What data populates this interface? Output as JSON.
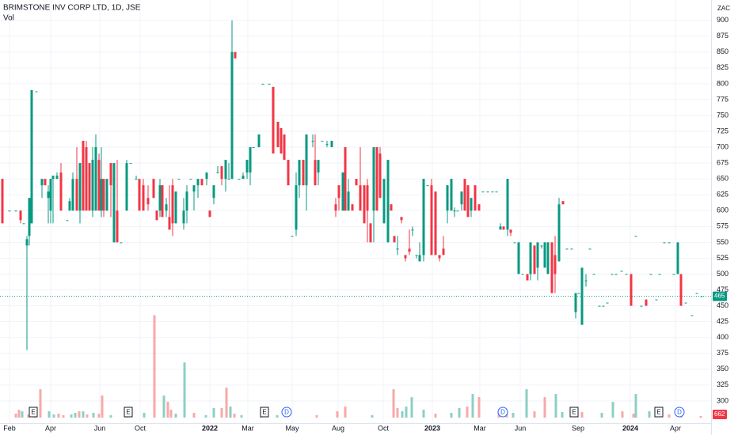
{
  "chart_data": {
    "type": "candlestick",
    "title": "BRIMSTONE INV CORP LTD, 1D, JSE",
    "volume_title": "Vol",
    "currency": "ZAC",
    "up_color": "#089981",
    "down_color": "#f23645",
    "ylim": [
      265,
      932
    ],
    "yticks": [
      300,
      325,
      350,
      375,
      400,
      425,
      450,
      475,
      500,
      525,
      550,
      575,
      600,
      625,
      650,
      675,
      700,
      725,
      750,
      775,
      800,
      825,
      850,
      875,
      900
    ],
    "xlim": [
      0,
      898
    ],
    "xticks": [
      {
        "value": 12,
        "label": "Feb"
      },
      {
        "value": 64,
        "label": "Apr"
      },
      {
        "value": 126,
        "label": "Jun"
      },
      {
        "value": 177,
        "label": "Oct"
      },
      {
        "value": 265,
        "label": "2022"
      },
      {
        "value": 313,
        "label": "Mar"
      },
      {
        "value": 369,
        "label": "May"
      },
      {
        "value": 427,
        "label": "Aug"
      },
      {
        "value": 484,
        "label": "Oct"
      },
      {
        "value": 546,
        "label": "2023"
      },
      {
        "value": 606,
        "label": "Mar"
      },
      {
        "value": 657,
        "label": "Jun"
      },
      {
        "value": 730,
        "label": "Sep"
      },
      {
        "value": 796,
        "label": "2024"
      },
      {
        "value": 853,
        "label": "Apr"
      }
    ],
    "grid": true,
    "last_price": 465,
    "last_volume": 662,
    "x": [
      3,
      12,
      20,
      26,
      30,
      34,
      37,
      40,
      46,
      53,
      57,
      61,
      64,
      67,
      72,
      77,
      85,
      88,
      92,
      97,
      101,
      105,
      109,
      113,
      117,
      121,
      125,
      128,
      131,
      135,
      140,
      144,
      148,
      153,
      160,
      165,
      172,
      176,
      181,
      187,
      194,
      198,
      202,
      205,
      210,
      214,
      218,
      222,
      226,
      232,
      236,
      241,
      245,
      250,
      255,
      261,
      265,
      270,
      275,
      280,
      285,
      289,
      293,
      297,
      302,
      307,
      312,
      316,
      320,
      327,
      332,
      340,
      345,
      351,
      355,
      359,
      364,
      369,
      374,
      378,
      383,
      387,
      395,
      398,
      402,
      407,
      413,
      419,
      424,
      428,
      433,
      436,
      440,
      445,
      450,
      455,
      460,
      464,
      468,
      472,
      476,
      480,
      485,
      490,
      494,
      498,
      502,
      507,
      512,
      517,
      521,
      526,
      530,
      535,
      540,
      545,
      550,
      555,
      560,
      565,
      570,
      574,
      578,
      583,
      587,
      591,
      595,
      600,
      605,
      610,
      616,
      622,
      627,
      632,
      636,
      641,
      645,
      650,
      655,
      660,
      666,
      670,
      675,
      679,
      684,
      688,
      692,
      697,
      701,
      706,
      711,
      716,
      722,
      727,
      731,
      735,
      740,
      745,
      750,
      757,
      762,
      767,
      773,
      778,
      785,
      791,
      797,
      803,
      810,
      816,
      822,
      829,
      833,
      839,
      845,
      851,
      856,
      860,
      866,
      874,
      880,
      886
    ],
    "ohlc": [
      [
        650,
        650,
        580,
        580
      ],
      [
        600,
        600,
        600,
        600
      ],
      [
        600,
        600,
        600,
        600
      ],
      [
        600,
        600,
        580,
        585
      ],
      [
        580,
        580,
        580,
        580
      ],
      [
        545,
        560,
        380,
        555
      ],
      [
        560,
        620,
        545,
        620
      ],
      [
        580,
        790,
        580,
        790
      ],
      [
        788,
        788,
        788,
        788
      ],
      [
        640,
        650,
        620,
        650
      ],
      [
        650,
        650,
        640,
        640
      ],
      [
        620,
        640,
        580,
        630
      ],
      [
        600,
        650,
        580,
        650
      ],
      [
        650,
        655,
        580,
        655
      ],
      [
        650,
        660,
        650,
        655
      ],
      [
        660,
        675,
        600,
        600
      ],
      [
        585,
        585,
        585,
        585
      ],
      [
        600,
        620,
        600,
        615
      ],
      [
        600,
        660,
        600,
        650
      ],
      [
        650,
        700,
        600,
        600
      ],
      [
        600,
        675,
        580,
        675
      ],
      [
        710,
        710,
        600,
        600
      ],
      [
        700,
        710,
        600,
        600
      ],
      [
        675,
        675,
        600,
        600
      ],
      [
        600,
        700,
        590,
        680
      ],
      [
        600,
        720,
        600,
        700
      ],
      [
        680,
        690,
        600,
        600
      ],
      [
        600,
        700,
        590,
        650
      ],
      [
        650,
        650,
        590,
        600
      ],
      [
        600,
        650,
        600,
        650
      ],
      [
        675,
        675,
        590,
        640
      ],
      [
        550,
        675,
        550,
        675
      ],
      [
        600,
        680,
        550,
        550
      ],
      [
        550,
        550,
        550,
        550
      ],
      [
        600,
        680,
        600,
        675
      ],
      [
        675,
        675,
        675,
        675
      ],
      [
        650,
        655,
        650,
        650
      ],
      [
        650,
        650,
        600,
        600
      ],
      [
        640,
        650,
        600,
        600
      ],
      [
        620,
        640,
        600,
        610
      ],
      [
        650,
        650,
        620,
        620
      ],
      [
        600,
        600,
        585,
        585
      ],
      [
        600,
        650,
        590,
        640
      ],
      [
        640,
        640,
        590,
        590
      ],
      [
        600,
        620,
        590,
        610
      ],
      [
        590,
        640,
        570,
        570
      ],
      [
        640,
        650,
        560,
        580
      ],
      [
        580,
        630,
        580,
        630
      ],
      [
        650,
        650,
        650,
        650
      ],
      [
        580,
        620,
        570,
        600
      ],
      [
        600,
        640,
        580,
        630
      ],
      [
        650,
        650,
        650,
        650
      ],
      [
        630,
        640,
        600,
        640
      ],
      [
        640,
        650,
        620,
        650
      ],
      [
        650,
        650,
        640,
        640
      ],
      [
        650,
        660,
        640,
        660
      ],
      [
        600,
        600,
        590,
        590
      ],
      [
        620,
        640,
        610,
        640
      ],
      [
        660,
        670,
        660,
        660
      ],
      [
        670,
        670,
        640,
        650
      ],
      [
        650,
        680,
        630,
        680
      ],
      [
        650,
        675,
        650,
        650
      ],
      [
        650,
        900,
        650,
        850
      ],
      [
        850,
        850,
        840,
        840
      ],
      [
        650,
        650,
        650,
        650
      ],
      [
        650,
        660,
        650,
        655
      ],
      [
        660,
        680,
        650,
        680
      ],
      [
        660,
        700,
        640,
        700
      ],
      [
        700,
        700,
        700,
        700
      ],
      [
        700,
        720,
        700,
        720
      ],
      [
        800,
        800,
        800,
        800
      ],
      [
        800,
        800,
        800,
        800
      ],
      [
        795,
        795,
        690,
        690
      ],
      [
        740,
        740,
        700,
        700
      ],
      [
        730,
        730,
        690,
        690
      ],
      [
        720,
        720,
        680,
        680
      ],
      [
        680,
        680,
        640,
        640
      ],
      [
        560,
        560,
        560,
        560
      ],
      [
        570,
        660,
        560,
        640
      ],
      [
        640,
        680,
        620,
        680
      ],
      [
        680,
        680,
        640,
        640
      ],
      [
        640,
        720,
        600,
        720
      ],
      [
        710,
        720,
        700,
        710
      ],
      [
        680,
        720,
        640,
        640
      ],
      [
        660,
        680,
        640,
        680
      ],
      [
        710,
        710,
        710,
        710
      ],
      [
        705,
        710,
        700,
        705
      ],
      [
        700,
        710,
        700,
        710
      ],
      [
        610,
        620,
        590,
        600
      ],
      [
        640,
        640,
        600,
        620
      ],
      [
        600,
        660,
        600,
        660
      ],
      [
        700,
        700,
        600,
        600
      ],
      [
        600,
        650,
        600,
        630
      ],
      [
        610,
        610,
        600,
        600
      ],
      [
        650,
        650,
        640,
        640
      ],
      [
        640,
        700,
        600,
        600
      ],
      [
        640,
        640,
        580,
        580
      ],
      [
        640,
        650,
        550,
        600
      ],
      [
        580,
        580,
        550,
        550
      ],
      [
        600,
        700,
        550,
        700
      ],
      [
        700,
        700,
        600,
        600
      ],
      [
        690,
        700,
        620,
        620
      ],
      [
        580,
        650,
        580,
        650
      ],
      [
        550,
        680,
        550,
        680
      ],
      [
        610,
        610,
        600,
        600
      ],
      [
        560,
        560,
        550,
        550
      ],
      [
        540,
        560,
        530,
        540
      ],
      [
        590,
        590,
        580,
        585
      ],
      [
        530,
        530,
        520,
        525
      ],
      [
        540,
        570,
        530,
        535
      ],
      [
        570,
        575,
        560,
        570
      ],
      [
        530,
        530,
        525,
        530
      ],
      [
        520,
        550,
        520,
        530
      ],
      [
        530,
        650,
        520,
        650
      ],
      [
        640,
        640,
        640,
        640
      ],
      [
        640,
        650,
        530,
        530
      ],
      [
        630,
        630,
        530,
        530
      ],
      [
        530,
        530,
        520,
        525
      ],
      [
        540,
        560,
        530,
        530
      ],
      [
        600,
        640,
        580,
        640
      ],
      [
        600,
        650,
        600,
        650
      ],
      [
        600,
        605,
        590,
        600
      ],
      [
        600,
        600,
        600,
        600
      ],
      [
        610,
        630,
        600,
        630
      ],
      [
        650,
        650,
        600,
        600
      ],
      [
        640,
        640,
        590,
        590
      ],
      [
        600,
        620,
        590,
        620
      ],
      [
        640,
        640,
        600,
        600
      ],
      [
        610,
        610,
        600,
        600
      ],
      [
        630,
        630,
        630,
        630
      ],
      [
        630,
        630,
        630,
        630
      ],
      [
        630,
        630,
        630,
        630
      ],
      [
        630,
        630,
        630,
        630
      ],
      [
        570,
        580,
        570,
        575
      ],
      [
        575,
        575,
        570,
        570
      ],
      [
        570,
        650,
        560,
        650
      ],
      [
        570,
        570,
        560,
        565
      ],
      [
        550,
        550,
        550,
        550
      ],
      [
        500,
        550,
        500,
        550
      ],
      [
        500,
        500,
        500,
        500
      ],
      [
        500,
        500,
        490,
        490
      ],
      [
        500,
        550,
        490,
        550
      ],
      [
        545,
        545,
        500,
        500
      ],
      [
        510,
        550,
        490,
        550
      ],
      [
        545,
        545,
        540,
        545
      ],
      [
        510,
        550,
        510,
        550
      ],
      [
        500,
        550,
        500,
        550
      ],
      [
        550,
        550,
        470,
        470
      ],
      [
        530,
        560,
        470,
        500
      ],
      [
        520,
        620,
        520,
        610
      ],
      [
        615,
        615,
        610,
        610
      ],
      [
        540,
        540,
        540,
        540
      ],
      [
        540,
        540,
        540,
        540
      ],
      [
        440,
        470,
        430,
        470
      ],
      [
        470,
        470,
        470,
        470
      ],
      [
        420,
        510,
        420,
        510
      ],
      [
        490,
        500,
        480,
        490
      ],
      [
        540,
        540,
        540,
        540
      ],
      [
        500,
        500,
        500,
        500
      ],
      [
        450,
        450,
        450,
        450
      ],
      [
        450,
        450,
        450,
        450
      ],
      [
        455,
        455,
        455,
        455
      ],
      [
        500,
        500,
        500,
        500
      ],
      [
        500,
        500,
        500,
        500
      ],
      [
        505,
        505,
        505,
        505
      ],
      [
        500,
        500,
        500,
        500
      ],
      [
        500,
        500,
        450,
        450
      ],
      [
        560,
        560,
        560,
        560
      ],
      [
        450,
        450,
        450,
        450
      ],
      [
        460,
        460,
        450,
        450
      ],
      [
        500,
        500,
        500,
        500
      ],
      [
        460,
        460,
        460,
        460
      ],
      [
        500,
        500,
        500,
        500
      ],
      [
        550,
        550,
        550,
        550
      ],
      [
        550,
        550,
        550,
        550
      ],
      [
        500,
        500,
        500,
        500
      ],
      [
        500,
        550,
        500,
        550
      ],
      [
        500,
        500,
        450,
        450
      ],
      [
        455,
        455,
        455,
        455
      ],
      [
        435,
        435,
        435,
        435
      ],
      [
        470,
        470,
        470,
        470
      ],
      [
        465,
        465,
        465,
        465
      ]
    ],
    "volume_lim": [
      0,
      175000
    ],
    "volume": {
      "x": [
        20,
        24,
        28,
        36,
        44,
        51,
        62,
        68,
        74,
        80,
        90,
        95,
        100,
        105,
        110,
        118,
        125,
        129,
        140,
        160,
        182,
        195,
        207,
        212,
        216,
        222,
        233,
        245,
        260,
        270,
        280,
        286,
        291,
        296,
        305,
        330,
        350,
        400,
        426,
        436,
        470,
        497,
        502,
        508,
        513,
        520,
        535,
        550,
        570,
        580,
        590,
        597,
        605,
        630,
        640,
        648,
        665,
        675,
        688,
        702,
        710,
        735,
        760,
        774,
        786,
        800,
        803,
        820,
        845,
        860,
        885
      ],
      "values": [
        1650,
        3300,
        2640,
        1320,
        2640,
        11880,
        2640,
        1320,
        1650,
        990,
        1320,
        1980,
        2640,
        2640,
        1320,
        1980,
        1650,
        9240,
        990,
        1320,
        1980,
        42900,
        9240,
        6600,
        3300,
        1650,
        23100,
        1980,
        990,
        3960,
        3960,
        12540,
        4620,
        1650,
        990,
        1320,
        990,
        990,
        2640,
        4620,
        990,
        11880,
        3960,
        2640,
        4620,
        8580,
        3300,
        1650,
        1980,
        3960,
        4620,
        9900,
        8580,
        2640,
        2640,
        1980,
        11880,
        2640,
        8580,
        9900,
        2310,
        2310,
        1980,
        6600,
        2640,
        1650,
        9900,
        2640,
        1320,
        1980,
        662
      ],
      "colors": [
        "#f7a9a7",
        "#f7a9a7",
        "#8ccfc4",
        "#f7a9a7",
        "#8ccfc4",
        "#f7a9a7",
        "#8ccfc4",
        "#8ccfc4",
        "#f7a9a7",
        "#f7a9a7",
        "#8ccfc4",
        "#8ccfc4",
        "#f7a9a7",
        "#8ccfc4",
        "#f7a9a7",
        "#8ccfc4",
        "#f7a9a7",
        "#f7a9a7",
        "#8ccfc4",
        "#f7a9a7",
        "#8ccfc4",
        "#f7a9a7",
        "#8ccfc4",
        "#f7a9a7",
        "#f7a9a7",
        "#8ccfc4",
        "#8ccfc4",
        "#f7a9a7",
        "#8ccfc4",
        "#8ccfc4",
        "#f7a9a7",
        "#f7a9a7",
        "#8ccfc4",
        "#f7a9a7",
        "#8ccfc4",
        "#f7a9a7",
        "#8ccfc4",
        "#f7a9a7",
        "#f7a9a7",
        "#f7a9a7",
        "#8ccfc4",
        "#f7a9a7",
        "#f7a9a7",
        "#8ccfc4",
        "#8ccfc4",
        "#8ccfc4",
        "#8ccfc4",
        "#f7a9a7",
        "#8ccfc4",
        "#8ccfc4",
        "#f7a9a7",
        "#8ccfc4",
        "#f7a9a7",
        "#f7a9a7",
        "#f7a9a7",
        "#8ccfc4",
        "#8ccfc4",
        "#f7a9a7",
        "#f7a9a7",
        "#8ccfc4",
        "#8ccfc4",
        "#f7a9a7",
        "#8ccfc4",
        "#8ccfc4",
        "#f7a9a7",
        "#f7a9a7",
        "#8ccfc4",
        "#8ccfc4",
        "#f7a9a7",
        "#f7a9a7",
        "#f7a9a7"
      ]
    },
    "events": [
      {
        "x": 42,
        "label": "E"
      },
      {
        "x": 162,
        "label": "E"
      },
      {
        "x": 334,
        "label": "E"
      },
      {
        "x": 362,
        "label": "D"
      },
      {
        "x": 635,
        "label": "D"
      },
      {
        "x": 725,
        "label": "E"
      },
      {
        "x": 832,
        "label": "E"
      },
      {
        "x": 858,
        "label": "D"
      }
    ]
  }
}
